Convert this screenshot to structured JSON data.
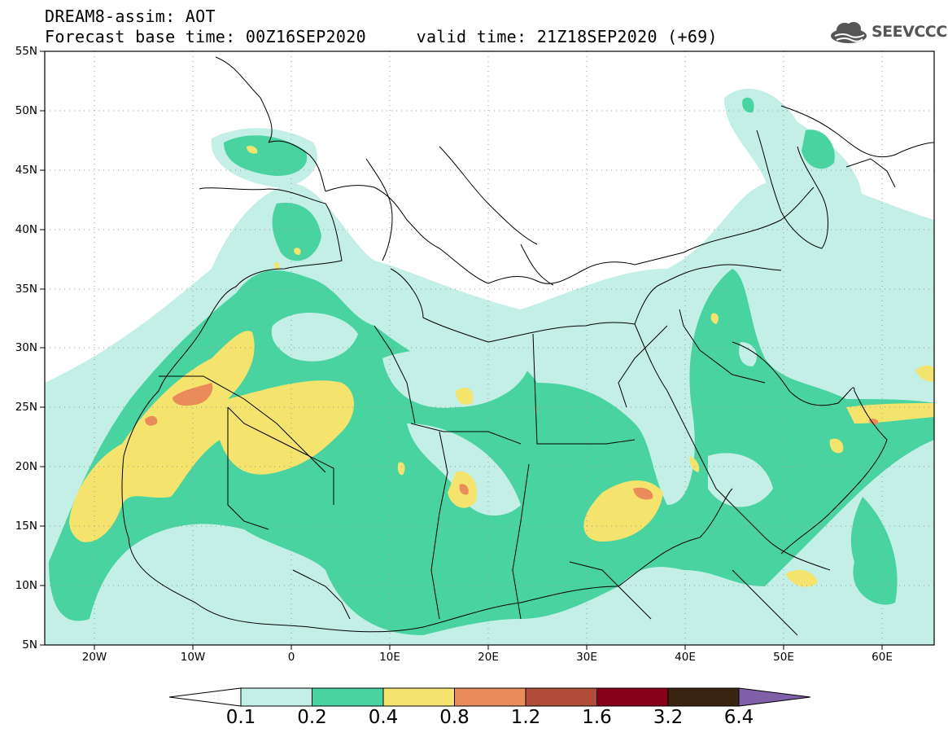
{
  "header": {
    "title_line1": "DREAM8-assim: AOT",
    "title_line2": "Forecast base time: 00Z16SEP2020     valid time: 21Z18SEP2020 (+69)"
  },
  "logo": {
    "text": "SEEVCCC",
    "icon": "cloud-icon"
  },
  "map": {
    "lon_range": [
      -25,
      65
    ],
    "lat_range": [
      5,
      55
    ],
    "y_ticks": [
      "55N",
      "50N",
      "45N",
      "40N",
      "35N",
      "30N",
      "25N",
      "20N",
      "15N",
      "10N",
      "5N"
    ],
    "x_ticks": [
      "20W",
      "10W",
      "0",
      "10E",
      "20E",
      "30E",
      "40E",
      "50E",
      "60E"
    ],
    "grid": "dotted"
  },
  "colorbar": {
    "labels": [
      "0.1",
      "0.2",
      "0.4",
      "0.8",
      "1.2",
      "1.6",
      "3.2",
      "6.4"
    ],
    "colors": [
      "#ffffff",
      "#c4efe6",
      "#48d3a0",
      "#f4e46e",
      "#ea8c5a",
      "#b24b39",
      "#86001a",
      "#3a2412",
      "#8060a8"
    ]
  }
}
